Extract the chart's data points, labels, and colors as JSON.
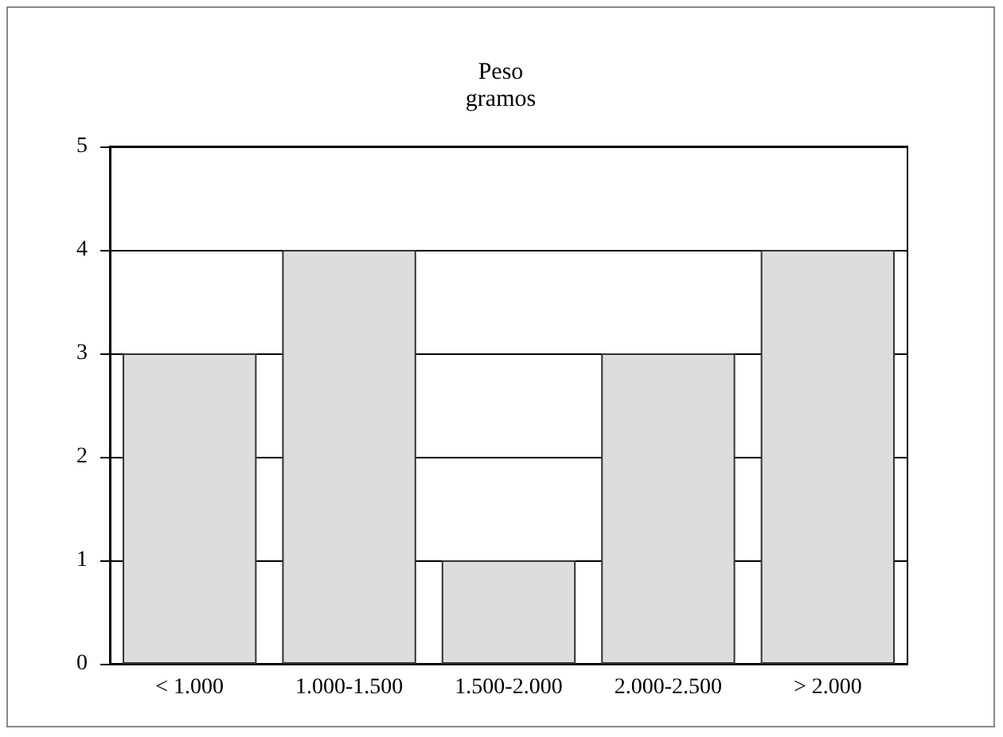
{
  "chart_data": {
    "type": "bar",
    "title": "Peso",
    "subtitle": "gramos",
    "categories": [
      "< 1.000",
      "1.000-1.500",
      "1.500-2.000",
      "2.000-2.500",
      "> 2.000"
    ],
    "values": [
      3,
      4,
      1,
      3,
      4
    ],
    "color": "#dddddd",
    "ylim": [
      0,
      5
    ],
    "yticks": [
      0,
      1,
      2,
      3,
      4,
      5
    ],
    "grid": "y"
  }
}
